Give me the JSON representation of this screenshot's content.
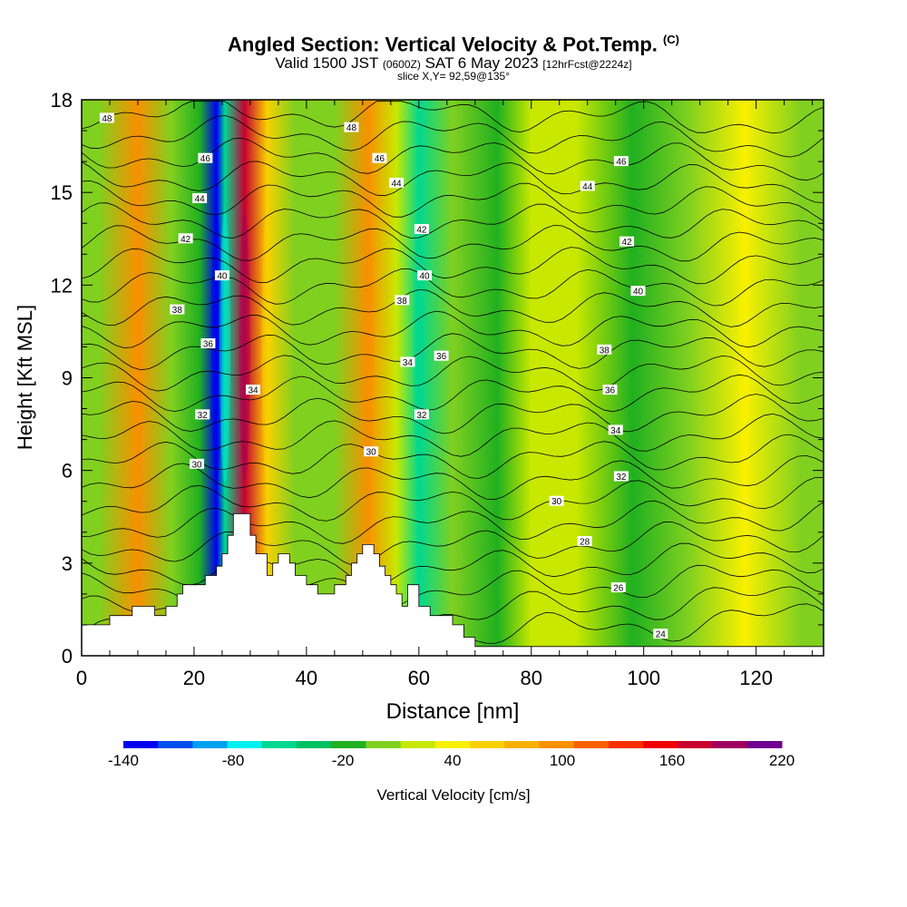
{
  "title": {
    "main": "Angled Section: Vertical Velocity & Pot.Temp.",
    "main_tag": "(C)",
    "sub_valid": "Valid 1500 JST",
    "sub_z": "(0600Z)",
    "sub_date": "SAT 6 May 2023",
    "sub_fcst": "[12hrFcst@2224z]",
    "slice": "slice X,Y= 92,59@135°"
  },
  "colorbar": {
    "label": "Vertical Velocity [cm/s]",
    "ticks": [
      "-140",
      "-80",
      "-20",
      "40",
      "100",
      "160",
      "220"
    ],
    "colors": [
      "#0000f0",
      "#0050f0",
      "#00a0f0",
      "#00f0f0",
      "#00d890",
      "#00c060",
      "#20b020",
      "#80d020",
      "#c8e800",
      "#f8f000",
      "#f8d000",
      "#f8b000",
      "#f89000",
      "#f86000",
      "#f83000",
      "#f00000",
      "#c80030",
      "#a00060",
      "#700090"
    ]
  },
  "chart_data": {
    "type": "heatmap",
    "title": "Angled Section: Vertical Velocity & Pot.Temp.",
    "xlabel": "Distance [nm]",
    "ylabel": "Height [Kft MSL]",
    "xlim": [
      0,
      132
    ],
    "ylim": [
      0,
      18
    ],
    "x_ticks": [
      0,
      20,
      40,
      60,
      80,
      100,
      120
    ],
    "y_ticks": [
      0,
      3,
      6,
      9,
      12,
      15,
      18
    ],
    "colorbar_range": [
      -140,
      220
    ],
    "velocity_bands": [
      {
        "x": 3,
        "value": 10
      },
      {
        "x": 10,
        "value": 90
      },
      {
        "x": 16,
        "value": 5
      },
      {
        "x": 21,
        "value": -15
      },
      {
        "x": 24,
        "value": -130
      },
      {
        "x": 25.5,
        "value": -60
      },
      {
        "x": 29,
        "value": 170
      },
      {
        "x": 33,
        "value": 50
      },
      {
        "x": 38,
        "value": 10
      },
      {
        "x": 45,
        "value": 0
      },
      {
        "x": 51,
        "value": 90
      },
      {
        "x": 56,
        "value": 20
      },
      {
        "x": 60,
        "value": -50
      },
      {
        "x": 66,
        "value": 0
      },
      {
        "x": 74,
        "value": -10
      },
      {
        "x": 80,
        "value": 25
      },
      {
        "x": 88,
        "value": 15
      },
      {
        "x": 98,
        "value": -15
      },
      {
        "x": 108,
        "value": 5
      },
      {
        "x": 118,
        "value": 40
      },
      {
        "x": 128,
        "value": 0
      }
    ],
    "terrain": [
      [
        0,
        1
      ],
      [
        5,
        1
      ],
      [
        5,
        1.3
      ],
      [
        9,
        1.3
      ],
      [
        9,
        1.6
      ],
      [
        13,
        1.6
      ],
      [
        13,
        1.3
      ],
      [
        15,
        1.3
      ],
      [
        15,
        1.6
      ],
      [
        17,
        1.6
      ],
      [
        17,
        2
      ],
      [
        18,
        2
      ],
      [
        18,
        2.3
      ],
      [
        22,
        2.3
      ],
      [
        22,
        2.6
      ],
      [
        24,
        2.6
      ],
      [
        24,
        2.9
      ],
      [
        25,
        2.9
      ],
      [
        25,
        3.3
      ],
      [
        26,
        3.3
      ],
      [
        26,
        3.9
      ],
      [
        27,
        3.9
      ],
      [
        27,
        4.6
      ],
      [
        30,
        4.6
      ],
      [
        30,
        3.9
      ],
      [
        31,
        3.9
      ],
      [
        31,
        3.3
      ],
      [
        33,
        3.3
      ],
      [
        33,
        2.6
      ],
      [
        34,
        2.6
      ],
      [
        34,
        3
      ],
      [
        35,
        3
      ],
      [
        35,
        3.3
      ],
      [
        37,
        3.3
      ],
      [
        37,
        3
      ],
      [
        38,
        3
      ],
      [
        38,
        2.6
      ],
      [
        40,
        2.6
      ],
      [
        40,
        2.3
      ],
      [
        42,
        2.3
      ],
      [
        42,
        2
      ],
      [
        45,
        2
      ],
      [
        45,
        2.3
      ],
      [
        47,
        2.3
      ],
      [
        47,
        2.6
      ],
      [
        48,
        2.6
      ],
      [
        48,
        3
      ],
      [
        49,
        3
      ],
      [
        49,
        3.3
      ],
      [
        50,
        3.3
      ],
      [
        50,
        3.6
      ],
      [
        52,
        3.6
      ],
      [
        52,
        3.3
      ],
      [
        53,
        3.3
      ],
      [
        53,
        2.9
      ],
      [
        54,
        2.9
      ],
      [
        54,
        2.6
      ],
      [
        55,
        2.6
      ],
      [
        55,
        2.3
      ],
      [
        56,
        2.3
      ],
      [
        56,
        2
      ],
      [
        57,
        2
      ],
      [
        57,
        1.6
      ],
      [
        58,
        1.6
      ],
      [
        58,
        2.3
      ],
      [
        60,
        2.3
      ],
      [
        60,
        1.6
      ],
      [
        62,
        1.6
      ],
      [
        62,
        1.3
      ],
      [
        66,
        1.3
      ],
      [
        66,
        1
      ],
      [
        68,
        1
      ],
      [
        68,
        0.6
      ],
      [
        70,
        0.6
      ],
      [
        70,
        0.3
      ],
      [
        132,
        0.3
      ],
      [
        132,
        0
      ],
      [
        0,
        0
      ]
    ],
    "theta_contours": {
      "unit": "°C",
      "levels": [
        24,
        25,
        26,
        27,
        28,
        29,
        30,
        31,
        32,
        33,
        34,
        35,
        36,
        37,
        38,
        39,
        40,
        41,
        42,
        43,
        44,
        45,
        46,
        47,
        48
      ],
      "label_positions": [
        {
          "label": "48",
          "x": 4.5,
          "y": 17.4
        },
        {
          "label": "46",
          "x": 22,
          "y": 16.1
        },
        {
          "label": "44",
          "x": 21,
          "y": 14.8
        },
        {
          "label": "42",
          "x": 18.5,
          "y": 13.5
        },
        {
          "label": "40",
          "x": 25,
          "y": 12.3
        },
        {
          "label": "38",
          "x": 17,
          "y": 11.2
        },
        {
          "label": "36",
          "x": 22.5,
          "y": 10.1
        },
        {
          "label": "34",
          "x": 30.5,
          "y": 8.6
        },
        {
          "label": "32",
          "x": 21.5,
          "y": 7.8
        },
        {
          "label": "30",
          "x": 20.5,
          "y": 6.2
        },
        {
          "label": "48",
          "x": 48,
          "y": 17.1
        },
        {
          "label": "46",
          "x": 53,
          "y": 16.1
        },
        {
          "label": "44",
          "x": 56,
          "y": 15.3
        },
        {
          "label": "42",
          "x": 60.5,
          "y": 13.8
        },
        {
          "label": "40",
          "x": 61,
          "y": 12.3
        },
        {
          "label": "38",
          "x": 57,
          "y": 11.5
        },
        {
          "label": "34",
          "x": 58,
          "y": 9.5
        },
        {
          "label": "36",
          "x": 64,
          "y": 9.7
        },
        {
          "label": "32",
          "x": 60.5,
          "y": 7.8
        },
        {
          "label": "30",
          "x": 51.5,
          "y": 6.6
        },
        {
          "label": "46",
          "x": 96,
          "y": 16
        },
        {
          "label": "44",
          "x": 90,
          "y": 15.2
        },
        {
          "label": "42",
          "x": 97,
          "y": 13.4
        },
        {
          "label": "40",
          "x": 99,
          "y": 11.8
        },
        {
          "label": "38",
          "x": 93,
          "y": 9.9
        },
        {
          "label": "36",
          "x": 94,
          "y": 8.6
        },
        {
          "label": "34",
          "x": 95,
          "y": 7.3
        },
        {
          "label": "32",
          "x": 96,
          "y": 5.8
        },
        {
          "label": "30",
          "x": 84.5,
          "y": 5
        },
        {
          "label": "28",
          "x": 89.5,
          "y": 3.7
        },
        {
          "label": "26",
          "x": 95.5,
          "y": 2.2
        },
        {
          "label": "24",
          "x": 103,
          "y": 0.7
        }
      ]
    }
  }
}
